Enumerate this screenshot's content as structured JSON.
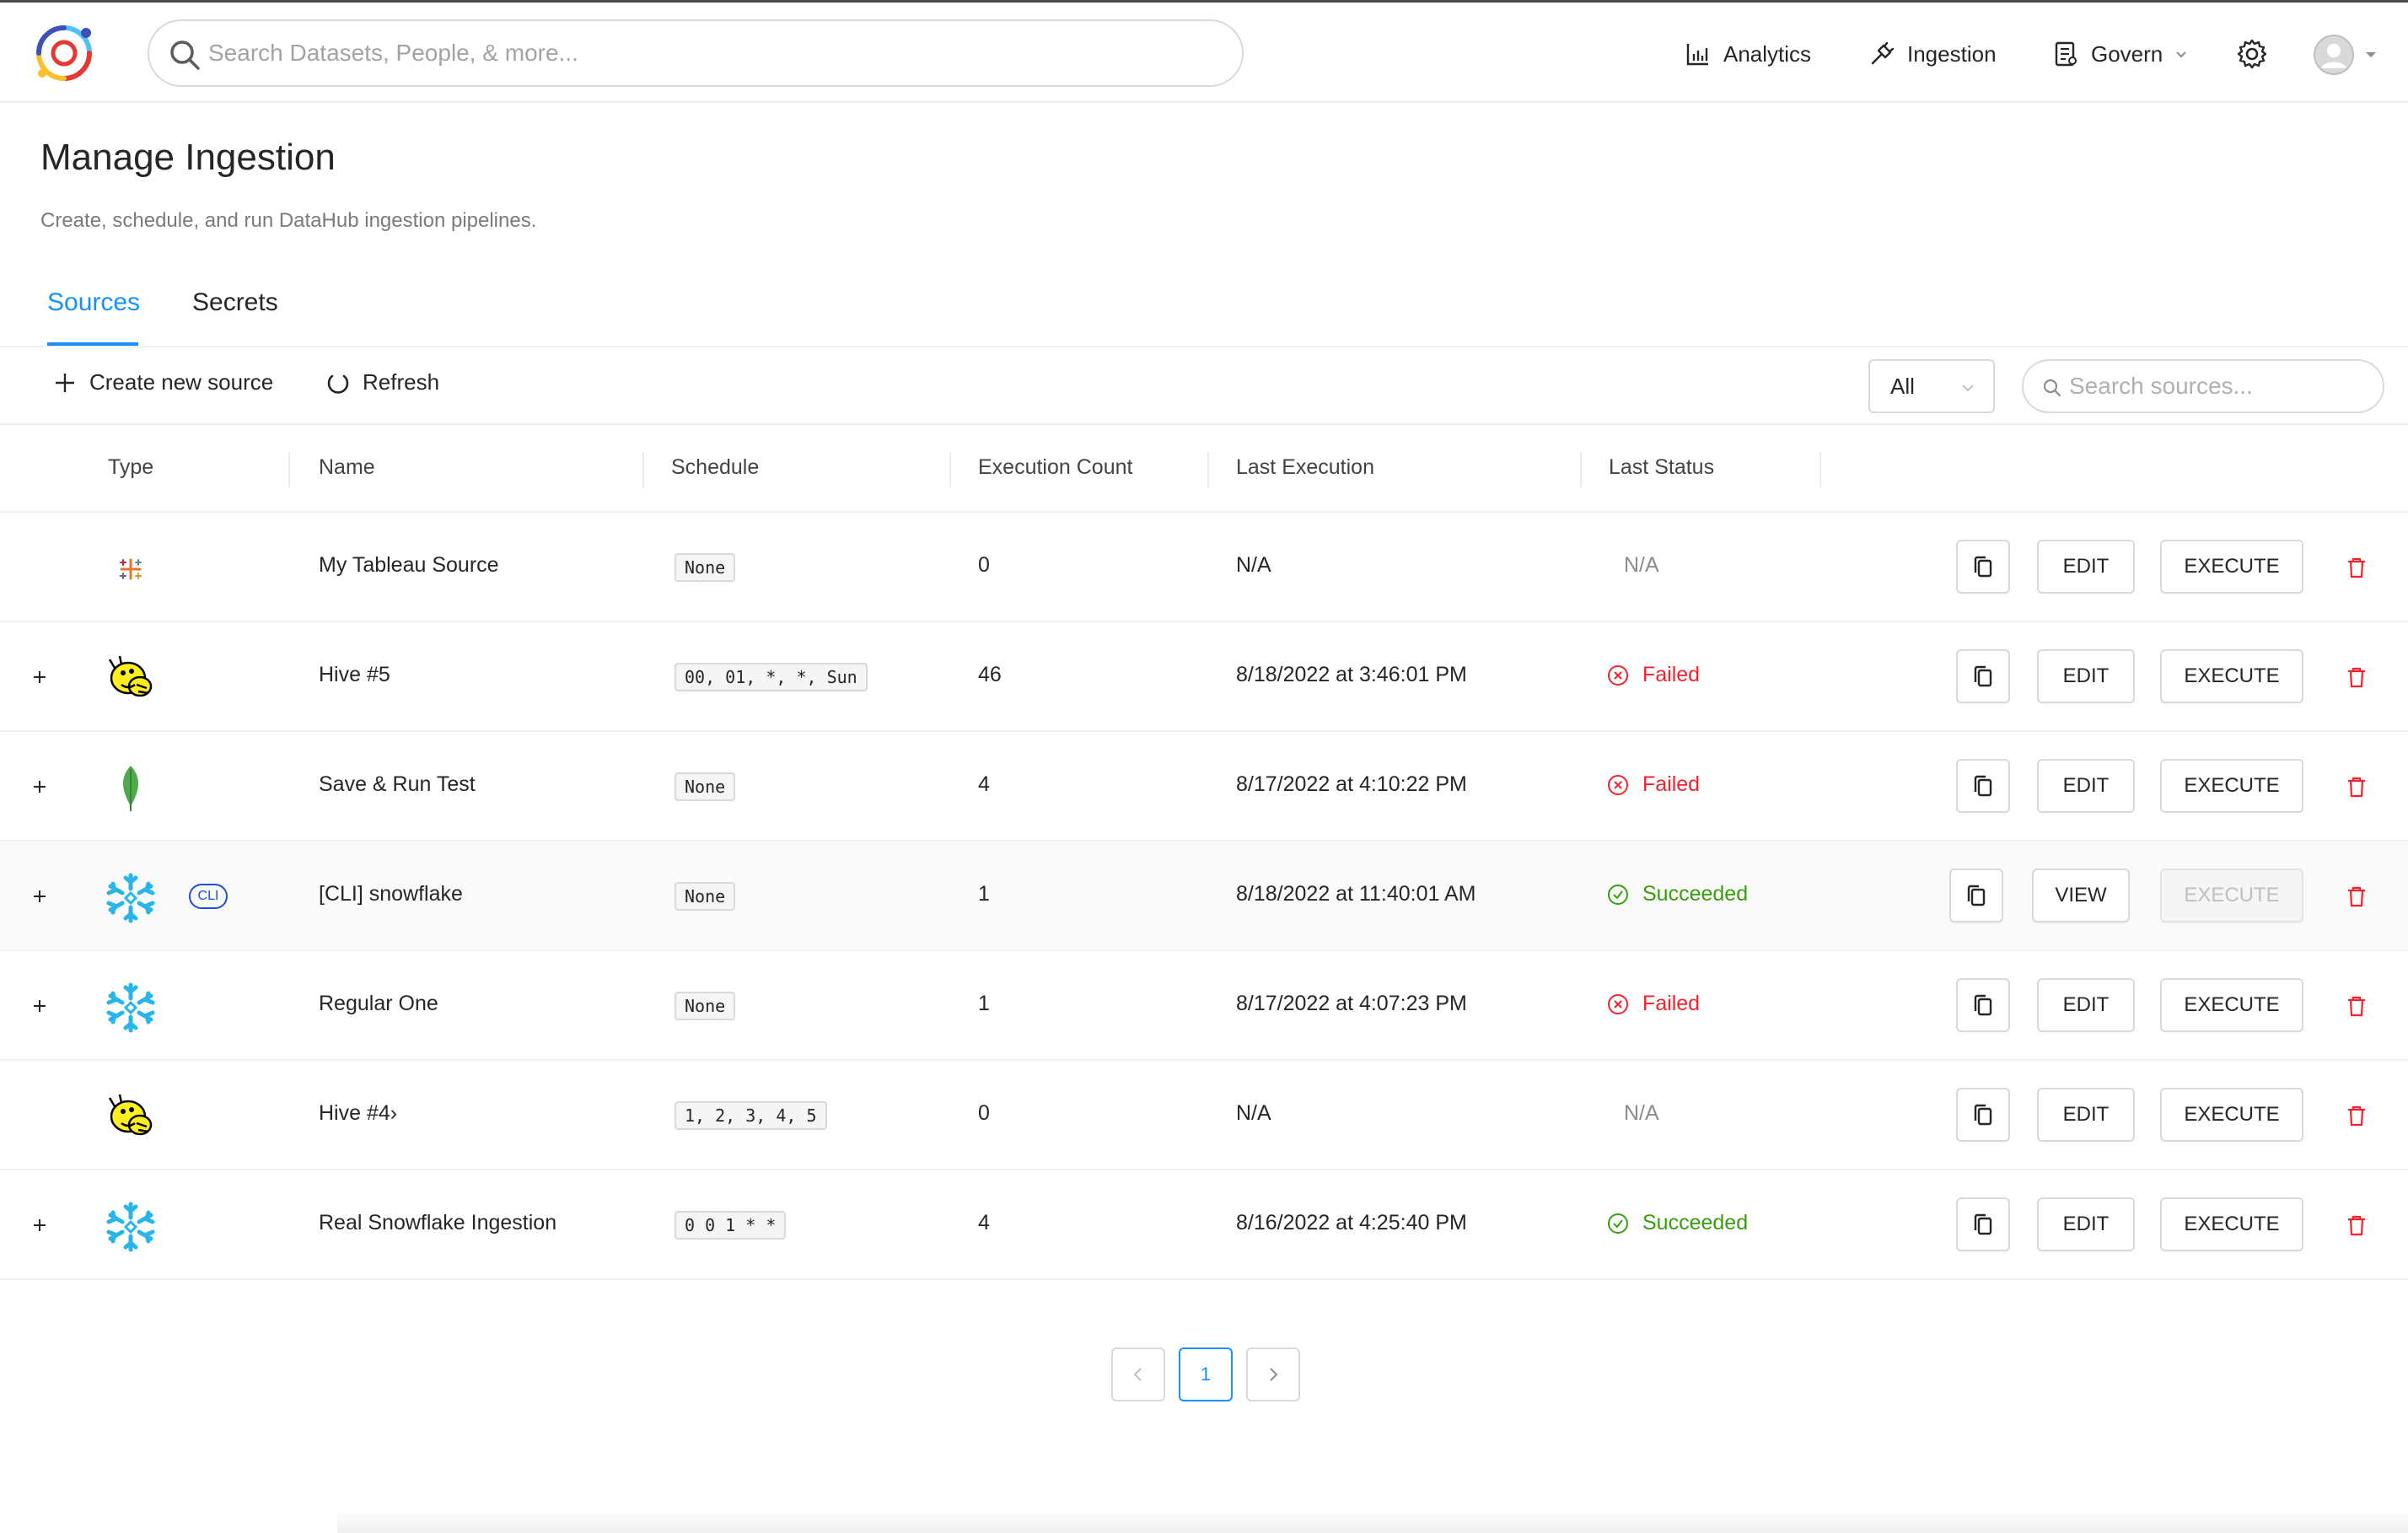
{
  "header": {
    "search_placeholder": "Search Datasets, People, & more...",
    "nav": {
      "analytics": "Analytics",
      "ingestion": "Ingestion",
      "govern": "Govern"
    }
  },
  "page": {
    "title": "Manage Ingestion",
    "subtitle": "Create, schedule, and run DataHub ingestion pipelines."
  },
  "tabs": [
    {
      "label": "Sources",
      "active": true
    },
    {
      "label": "Secrets",
      "active": false
    }
  ],
  "toolbar": {
    "create_label": "Create new source",
    "refresh_label": "Refresh",
    "filter_value": "All",
    "search_placeholder": "Search sources..."
  },
  "table": {
    "columns": [
      "Type",
      "Name",
      "Schedule",
      "Execution Count",
      "Last Execution",
      "Last Status"
    ],
    "rows": [
      {
        "type_icon": "tableau-icon",
        "cli": false,
        "expandable": false,
        "name": "My Tableau Source",
        "schedule": "None",
        "count": "0",
        "last_execution": "N/A",
        "status": "N/A",
        "status_kind": "na",
        "edit_label": "EDIT",
        "execute_label": "EXECUTE",
        "execute_disabled": false
      },
      {
        "type_icon": "hive-icon",
        "cli": false,
        "expandable": true,
        "name": "Hive #5",
        "schedule": "00, 01, *, *, Sun",
        "count": "46",
        "last_execution": "8/18/2022 at 3:46:01 PM",
        "status": "Failed",
        "status_kind": "failed",
        "edit_label": "EDIT",
        "execute_label": "EXECUTE",
        "execute_disabled": false
      },
      {
        "type_icon": "mongodb-icon",
        "cli": false,
        "expandable": true,
        "name": "Save & Run Test",
        "schedule": "None",
        "count": "4",
        "last_execution": "8/17/2022 at 4:10:22 PM",
        "status": "Failed",
        "status_kind": "failed",
        "edit_label": "EDIT",
        "execute_label": "EXECUTE",
        "execute_disabled": false
      },
      {
        "type_icon": "snowflake-icon",
        "cli": true,
        "cli_label": "CLI",
        "expandable": true,
        "name": "[CLI] snowflake",
        "schedule": "None",
        "count": "1",
        "last_execution": "8/18/2022 at 11:40:01 AM",
        "status": "Succeeded",
        "status_kind": "succeeded",
        "edit_label": "VIEW",
        "execute_label": "EXECUTE",
        "execute_disabled": true
      },
      {
        "type_icon": "snowflake-icon",
        "cli": false,
        "expandable": true,
        "name": "Regular One",
        "schedule": "None",
        "count": "1",
        "last_execution": "8/17/2022 at 4:07:23 PM",
        "status": "Failed",
        "status_kind": "failed",
        "edit_label": "EDIT",
        "execute_label": "EXECUTE",
        "execute_disabled": false
      },
      {
        "type_icon": "hive-icon",
        "cli": false,
        "expandable": false,
        "name": "Hive #4›",
        "schedule": "1, 2, 3, 4, 5",
        "count": "0",
        "last_execution": "N/A",
        "status": "N/A",
        "status_kind": "na",
        "edit_label": "EDIT",
        "execute_label": "EXECUTE",
        "execute_disabled": false
      },
      {
        "type_icon": "snowflake-icon",
        "cli": false,
        "expandable": true,
        "name": "Real Snowflake Ingestion",
        "schedule": "0 0 1 * *",
        "count": "4",
        "last_execution": "8/16/2022 at 4:25:40 PM",
        "status": "Succeeded",
        "status_kind": "succeeded",
        "edit_label": "EDIT",
        "execute_label": "EXECUTE",
        "execute_disabled": false
      }
    ]
  },
  "pagination": {
    "current_page": "1"
  },
  "colors": {
    "accent": "#1890ff",
    "failed": "#f5222d",
    "succeeded": "#389e0d",
    "delete": "#f5222d"
  }
}
